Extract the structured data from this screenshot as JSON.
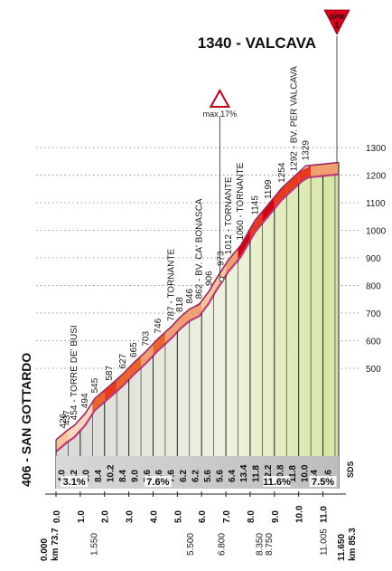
{
  "chart_data": {
    "type": "area",
    "title": "1340 - VALCAVA",
    "gpm": {
      "label": "GPM",
      "category": "1"
    },
    "max_marker": "max 17%",
    "start_label": "406 - SAN GOTTARDO",
    "watermark": "SDS",
    "y_ticks": [
      "1300",
      "1200",
      "1100",
      "1000",
      "900",
      "800",
      "700",
      "600",
      "500"
    ],
    "ylim": [
      400,
      1340
    ],
    "xlim": [
      0,
      11.65
    ],
    "profile": [
      {
        "km": 0.0,
        "alt": 406
      },
      {
        "km": 0.3,
        "alt": 426
      },
      {
        "km": 0.45,
        "alt": 437
      },
      {
        "km": 0.75,
        "alt": 454
      },
      {
        "km": 1.2,
        "alt": 494
      },
      {
        "km": 1.6,
        "alt": 545
      },
      {
        "km": 2.2,
        "alt": 587
      },
      {
        "km": 2.75,
        "alt": 627
      },
      {
        "km": 3.2,
        "alt": 665
      },
      {
        "km": 3.7,
        "alt": 703
      },
      {
        "km": 4.2,
        "alt": 746
      },
      {
        "km": 4.75,
        "alt": 787
      },
      {
        "km": 5.1,
        "alt": 818
      },
      {
        "km": 5.5,
        "alt": 846
      },
      {
        "km": 5.9,
        "alt": 862
      },
      {
        "km": 6.3,
        "alt": 906
      },
      {
        "km": 6.6,
        "alt": 948
      },
      {
        "km": 6.8,
        "alt": 973
      },
      {
        "km": 7.1,
        "alt": 1012
      },
      {
        "km": 7.6,
        "alt": 1060
      },
      {
        "km": 8.2,
        "alt": 1145
      },
      {
        "km": 8.75,
        "alt": 1199
      },
      {
        "km": 9.3,
        "alt": 1254
      },
      {
        "km": 9.8,
        "alt": 1292
      },
      {
        "km": 10.3,
        "alt": 1329
      },
      {
        "km": 11.65,
        "alt": 1340
      }
    ],
    "altitude_labels": [
      {
        "km": 0.3,
        "text": "426"
      },
      {
        "km": 0.45,
        "text": "437"
      },
      {
        "km": 0.75,
        "text": "454 - TORRE DE' BUSI"
      },
      {
        "km": 1.2,
        "text": "494"
      },
      {
        "km": 1.6,
        "text": "545"
      },
      {
        "km": 2.2,
        "text": "587"
      },
      {
        "km": 2.75,
        "text": "627"
      },
      {
        "km": 3.2,
        "text": "665"
      },
      {
        "km": 3.7,
        "text": "703"
      },
      {
        "km": 4.2,
        "text": "746"
      },
      {
        "km": 4.75,
        "text": "787 - TORNANTE"
      },
      {
        "km": 5.1,
        "text": "818"
      },
      {
        "km": 5.5,
        "text": "846"
      },
      {
        "km": 5.9,
        "text": "862 - BV. CA' BONASCA"
      },
      {
        "km": 6.3,
        "text": "906"
      },
      {
        "km": 6.8,
        "text": "973"
      },
      {
        "km": 7.1,
        "text": "1012 - TORNANTE"
      },
      {
        "km": 7.6,
        "text": "1060 - TORNANTE"
      },
      {
        "km": 8.2,
        "text": "1145"
      },
      {
        "km": 8.75,
        "text": "1199"
      },
      {
        "km": 9.3,
        "text": "1254"
      },
      {
        "km": 9.8,
        "text": "1292 - BV. PER VALCAVA"
      },
      {
        "km": 10.3,
        "text": "1329"
      }
    ],
    "segment_gradients": [
      {
        "km": 0.0,
        "value": "4.0"
      },
      {
        "km": 0.5,
        "value": "2.2"
      },
      {
        "km": 1.0,
        "value": "3.0"
      },
      {
        "km": 1.5,
        "value": "8.4"
      },
      {
        "km": 2.0,
        "value": "10.2"
      },
      {
        "km": 2.5,
        "value": "8.4"
      },
      {
        "km": 3.0,
        "value": "9.0"
      },
      {
        "km": 3.5,
        "value": "7.6"
      },
      {
        "km": 4.0,
        "value": "8.6"
      },
      {
        "km": 4.5,
        "value": "7.6"
      },
      {
        "km": 5.0,
        "value": "6.2"
      },
      {
        "km": 5.5,
        "value": "6.2"
      },
      {
        "km": 6.0,
        "value": "5.6"
      },
      {
        "km": 6.5,
        "value": "5.6"
      },
      {
        "km": 7.0,
        "value": "6.4"
      },
      {
        "km": 7.5,
        "value": "13.4"
      },
      {
        "km": 8.0,
        "value": "11.8"
      },
      {
        "km": 8.5,
        "value": "12.2"
      },
      {
        "km": 9.0,
        "value": "10.8"
      },
      {
        "km": 9.5,
        "value": "11.8"
      },
      {
        "km": 10.0,
        "value": "10.0"
      },
      {
        "km": 10.5,
        "value": "7.4"
      },
      {
        "km": 10.8,
        "value": "7.6"
      }
    ],
    "avg_gradients": [
      {
        "km": 0.75,
        "text": "3.1%"
      },
      {
        "km": 4.2,
        "text": "7.6%"
      },
      {
        "km": 9.1,
        "text": "11.6%"
      },
      {
        "km": 11.0,
        "text": "7.5%"
      }
    ],
    "x_ticks": [
      {
        "km": 0.0,
        "text": "0.0"
      },
      {
        "km": 1.0,
        "text": "1.0"
      },
      {
        "km": 2.0,
        "text": "2.0"
      },
      {
        "km": 3.0,
        "text": "3.0"
      },
      {
        "km": 4.0,
        "text": "4.0"
      },
      {
        "km": 5.0,
        "text": "5.0"
      },
      {
        "km": 6.0,
        "text": "6.0"
      },
      {
        "km": 7.0,
        "text": "7.0"
      },
      {
        "km": 8.0,
        "text": "8.0"
      },
      {
        "km": 9.0,
        "text": "9.0"
      },
      {
        "km": 10.0,
        "text": "10.0"
      },
      {
        "km": 11.0,
        "text": "11.0"
      }
    ],
    "x_ticks_lower": [
      {
        "km": 1.55,
        "text": "1.550"
      },
      {
        "km": 5.5,
        "text": "5.500"
      },
      {
        "km": 6.8,
        "text": "6.800"
      },
      {
        "km": 8.35,
        "text": "8.350"
      },
      {
        "km": 8.75,
        "text": "8.750"
      },
      {
        "km": 11.005,
        "text": "11.005"
      }
    ],
    "km_start": {
      "main": "0.000",
      "sub": "km 73.7"
    },
    "km_end": {
      "main": "11.650",
      "sub": "km 85.3"
    }
  }
}
